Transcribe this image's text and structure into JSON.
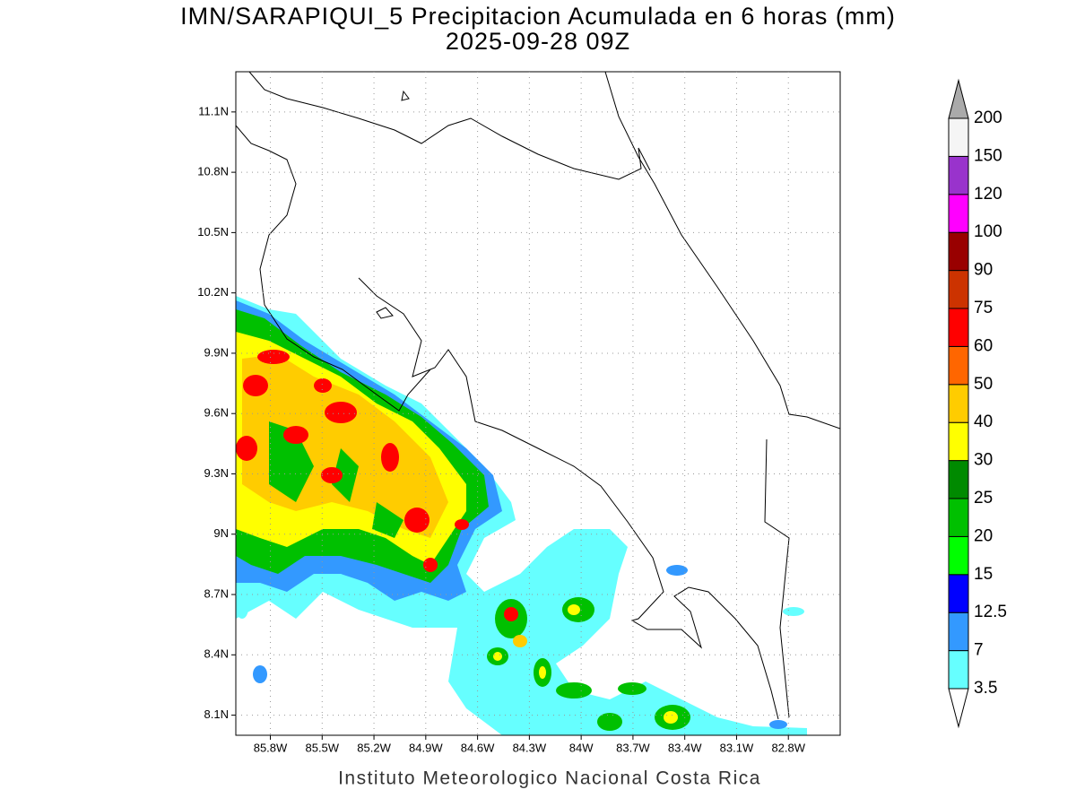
{
  "title": "IMN/SARAPIQUI_5 Precipitacion Acumulada en 6 horas (mm)",
  "subtitle": "2025-09-28 09Z",
  "footer": "Instituto Meteorologico Nacional Costa Rica",
  "map": {
    "latlim": [
      8.0,
      11.3
    ],
    "lonlim": [
      -86.0,
      -82.5
    ],
    "grid": true,
    "latticks": [
      {
        "value": 8.1,
        "label": "8.1N"
      },
      {
        "value": 8.4,
        "label": "8.4N"
      },
      {
        "value": 8.7,
        "label": "8.7N"
      },
      {
        "value": 9.0,
        "label": "9N"
      },
      {
        "value": 9.3,
        "label": "9.3N"
      },
      {
        "value": 9.6,
        "label": "9.6N"
      },
      {
        "value": 9.9,
        "label": "9.9N"
      },
      {
        "value": 10.2,
        "label": "10.2N"
      },
      {
        "value": 10.5,
        "label": "10.5N"
      },
      {
        "value": 10.8,
        "label": "10.8N"
      },
      {
        "value": 11.1,
        "label": "11.1N"
      }
    ],
    "lonticks": [
      {
        "value": -85.8,
        "label": "85.8W"
      },
      {
        "value": -85.5,
        "label": "85.5W"
      },
      {
        "value": -85.2,
        "label": "85.2W"
      },
      {
        "value": -84.9,
        "label": "84.9W"
      },
      {
        "value": -84.6,
        "label": "84.6W"
      },
      {
        "value": -84.3,
        "label": "84.3W"
      },
      {
        "value": -84.0,
        "label": "84W"
      },
      {
        "value": -83.7,
        "label": "83.7W"
      },
      {
        "value": -83.4,
        "label": "83.4W"
      },
      {
        "value": -83.1,
        "label": "83.1W"
      },
      {
        "value": -82.8,
        "label": "82.8W"
      }
    ]
  },
  "colorbar": {
    "levels": [
      {
        "value": 3.5,
        "label": "3.5"
      },
      7,
      {
        "value": 12.5,
        "label": "12.5"
      },
      15,
      20,
      25,
      30,
      40,
      50,
      60,
      75,
      90,
      100,
      120,
      150,
      200
    ],
    "colors": [
      "#66ffff",
      "#3399ff",
      "#0000ff",
      "#00ff00",
      "#00c000",
      "#008a00",
      "#ffff00",
      "#ffcc00",
      "#ff6600",
      "#ff0000",
      "#cc3300",
      "#990000",
      "#ff00ff",
      "#9933cc",
      "#f5f5f5"
    ],
    "under_color": "#ffffff",
    "over_color": "#aaaaaa"
  }
}
